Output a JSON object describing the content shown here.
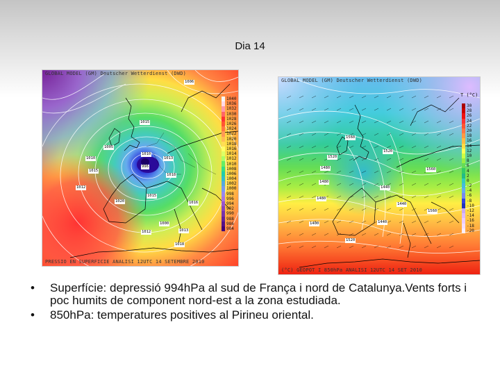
{
  "slide": {
    "title": "Dia 14",
    "bullet_symbol": "•",
    "bullets": [
      "Superfície: depressió 994hPa al sud de França i nord de Catalunya.Vents forts i poc humits de component nord-est a la zona estudiada.",
      "850hPa: temperatures positives al Pirineu oriental."
    ]
  },
  "map_surface": {
    "header": "GLOBAL MODEL (GM) Deutscher Wetterdienst (DWD)",
    "footer": "PRESSIO EN SUPERFICIE     ANALISI 12UTC 14 SETEMBRE 2010",
    "legend_values": [
      "1040",
      "1036",
      "1032",
      "1030",
      "1028",
      "1026",
      "1024",
      "1022",
      "1020",
      "1018",
      "1016",
      "1014",
      "1012",
      "1010",
      "1008",
      "1006",
      "1004",
      "1002",
      "1000",
      "998",
      "996",
      "994",
      "992",
      "990",
      "988",
      "986",
      "984"
    ],
    "legend_colors": [
      "#f7f7f7",
      "#ffd9e6",
      "#ff99aa",
      "#ff6666",
      "#ff3333",
      "#ff5533",
      "#ff7744",
      "#ff9955",
      "#ffbb55",
      "#ffdd55",
      "#ffff66",
      "#ddff66",
      "#aaff66",
      "#66ee66",
      "#33dd88",
      "#22ccaa",
      "#33bbcc",
      "#55aadd",
      "#7799ee",
      "#9988ee",
      "#aa77dd",
      "#9955cc",
      "#8844bb",
      "#7733aa",
      "#662299",
      "#551188",
      "#440077"
    ],
    "isobar_labels": [
      "1006",
      "1015",
      "1005",
      "1010",
      "1013",
      "996",
      "1018",
      "1010",
      "1015",
      "1012",
      "1020",
      "1015",
      "1016",
      "1000",
      "1012",
      "1013",
      "1018"
    ]
  },
  "map_850": {
    "header": "GLOBAL MODEL (GM) Deutscher Wetterdienst (DWD)",
    "footer": "(°C)  GEOPOT I 850hPa     ANALISI 12UTC 14 SET 2010",
    "legend_title": "T (°C)",
    "legend_values": [
      "30",
      "28",
      "26",
      "24",
      "22",
      "20",
      "18",
      "16",
      "14",
      "12",
      "10",
      "8",
      "6",
      "4",
      "2",
      "0",
      "-2",
      "-4",
      "-6",
      "-8",
      "-10",
      "-12",
      "-14",
      "-16",
      "-18",
      "-20"
    ],
    "legend_colors": [
      "#aa0000",
      "#cc0000",
      "#ee1111",
      "#ff3333",
      "#ff5533",
      "#ff7744",
      "#ff9944",
      "#ffbb44",
      "#ffdd44",
      "#ffff55",
      "#ccff44",
      "#99ee44",
      "#66dd55",
      "#33cc66",
      "#22bb88",
      "#33ccbb",
      "#44bbdd",
      "#66aaee",
      "#7788ee",
      "#3344dd",
      "#2233bb",
      "#ccaaee",
      "#ddbbff",
      "#eeccff",
      "#f5ddff",
      "#faeeff"
    ],
    "geopot_labels": [
      "1560",
      "1520",
      "1480",
      "1480",
      "1560",
      "1520",
      "1440",
      "1480",
      "1440",
      "1560",
      "1400",
      "1520",
      "1440"
    ]
  }
}
